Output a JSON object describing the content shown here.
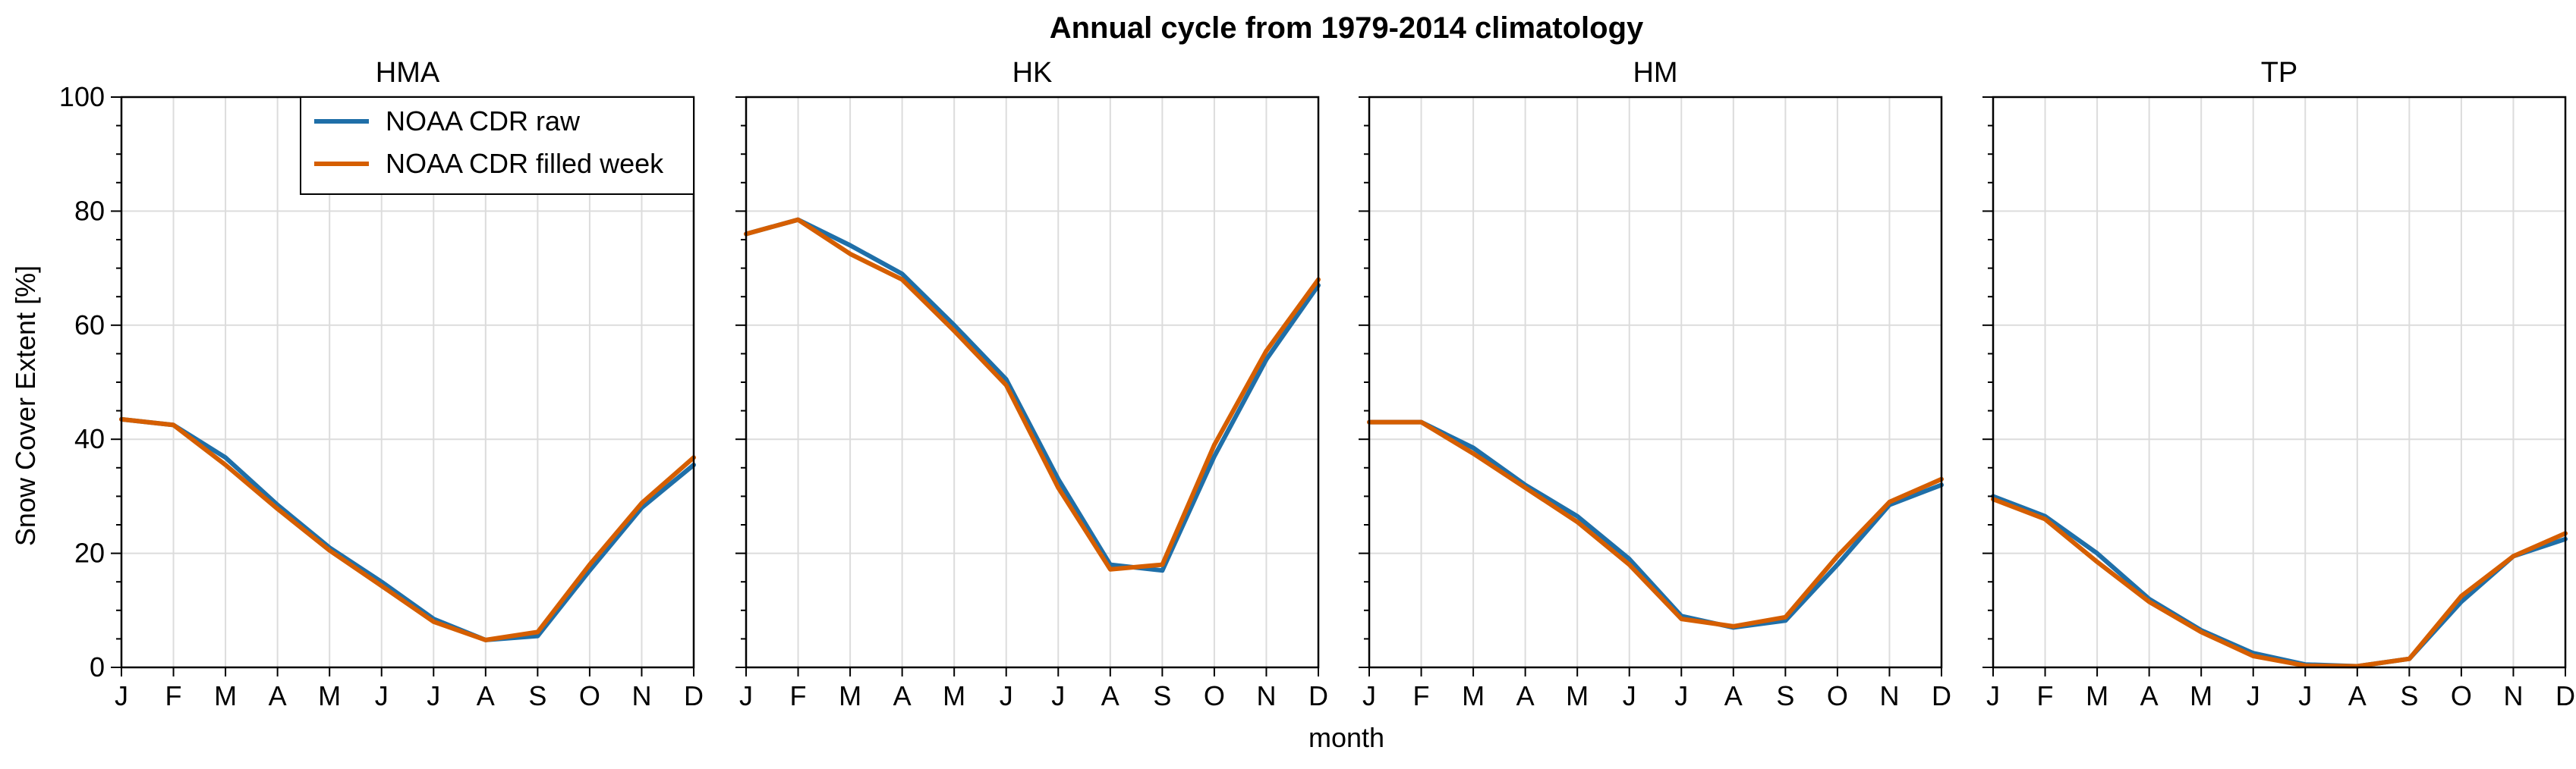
{
  "chart_data": {
    "type": "line",
    "title": "Annual cycle from 1979-2014 climatology",
    "xlabel": "month",
    "ylabel": "Snow Cover Extent [%]",
    "ylim": [
      0,
      100
    ],
    "yticks": [
      0,
      20,
      40,
      60,
      80,
      100
    ],
    "categories": [
      "J",
      "F",
      "M",
      "A",
      "M",
      "J",
      "J",
      "A",
      "S",
      "O",
      "N",
      "D"
    ],
    "grid": true,
    "legend": {
      "placement": "top-right",
      "panel": 0
    },
    "series_styles": [
      {
        "name": "NOAA CDR raw",
        "color": "#1f6fa8"
      },
      {
        "name": "NOAA CDR filled week",
        "color": "#d55e00"
      }
    ],
    "panels": [
      {
        "title": "HMA",
        "series": [
          {
            "name": "NOAA CDR raw",
            "values": [
              43.5,
              42.5,
              36.8,
              28.5,
              21.0,
              15.0,
              8.5,
              4.8,
              5.5,
              17.0,
              28.0,
              35.5
            ]
          },
          {
            "name": "NOAA CDR filled week",
            "values": [
              43.5,
              42.5,
              35.5,
              27.8,
              20.5,
              14.3,
              8.0,
              4.8,
              6.2,
              18.0,
              28.8,
              36.8
            ]
          }
        ]
      },
      {
        "title": "HK",
        "series": [
          {
            "name": "NOAA CDR raw",
            "values": [
              76.0,
              78.5,
              74.0,
              69.0,
              60.0,
              50.5,
              33.0,
              18.0,
              17.0,
              37.0,
              54.0,
              67.0
            ]
          },
          {
            "name": "NOAA CDR filled week",
            "values": [
              76.0,
              78.5,
              72.5,
              68.0,
              59.0,
              49.5,
              31.5,
              17.2,
              18.0,
              39.0,
              55.5,
              68.0
            ]
          }
        ]
      },
      {
        "title": "HM",
        "series": [
          {
            "name": "NOAA CDR raw",
            "values": [
              43.0,
              43.0,
              38.5,
              32.0,
              26.5,
              19.0,
              9.0,
              7.0,
              8.2,
              18.0,
              28.5,
              32.0
            ]
          },
          {
            "name": "NOAA CDR filled week",
            "values": [
              43.0,
              43.0,
              37.5,
              31.5,
              25.5,
              18.0,
              8.5,
              7.2,
              8.8,
              19.5,
              29.0,
              33.0
            ]
          }
        ]
      },
      {
        "title": "TP",
        "series": [
          {
            "name": "NOAA CDR raw",
            "values": [
              30.0,
              26.5,
              20.0,
              12.0,
              6.5,
              2.5,
              0.5,
              0.2,
              1.5,
              11.5,
              19.5,
              22.5
            ]
          },
          {
            "name": "NOAA CDR filled week",
            "values": [
              29.5,
              26.0,
              18.5,
              11.5,
              6.2,
              2.0,
              0.3,
              0.2,
              1.5,
              12.5,
              19.5,
              23.5
            ]
          }
        ]
      }
    ]
  }
}
